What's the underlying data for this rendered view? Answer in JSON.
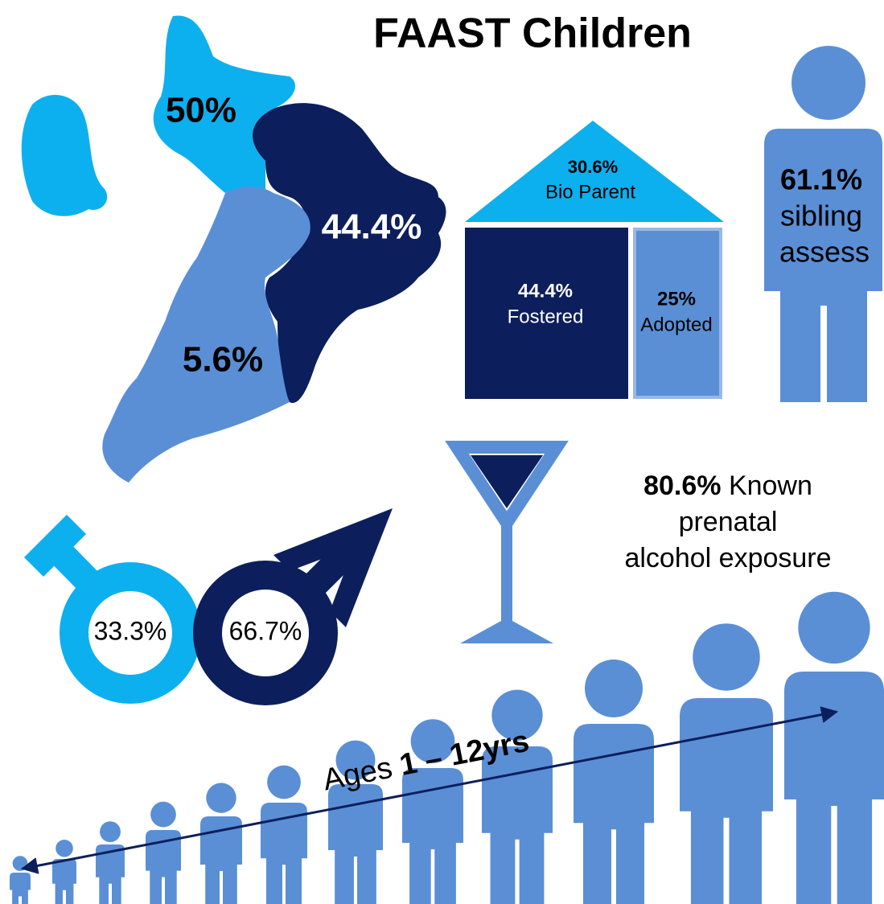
{
  "title": "FAAST Children",
  "map": {
    "regions": [
      {
        "label": "50%"
      },
      {
        "label": "44.4%"
      },
      {
        "label": "5.6%"
      }
    ]
  },
  "house": {
    "roof": {
      "value": "30.6%",
      "label": "Bio Parent"
    },
    "rooms": [
      {
        "value": "44.4%",
        "label": "Fostered"
      },
      {
        "value": "25%",
        "label": "Adopted"
      }
    ]
  },
  "sibling": {
    "value": "61.1%",
    "lines": [
      "sibling",
      "assess"
    ]
  },
  "alcohol": {
    "value": "80.6%",
    "lines": [
      "Known",
      "prenatal",
      "alcohol exposure"
    ]
  },
  "gender": {
    "female": "33.3%",
    "male": "66.7%"
  },
  "ages": {
    "prefix": "Ages",
    "range": "1 – 12yrs"
  }
}
